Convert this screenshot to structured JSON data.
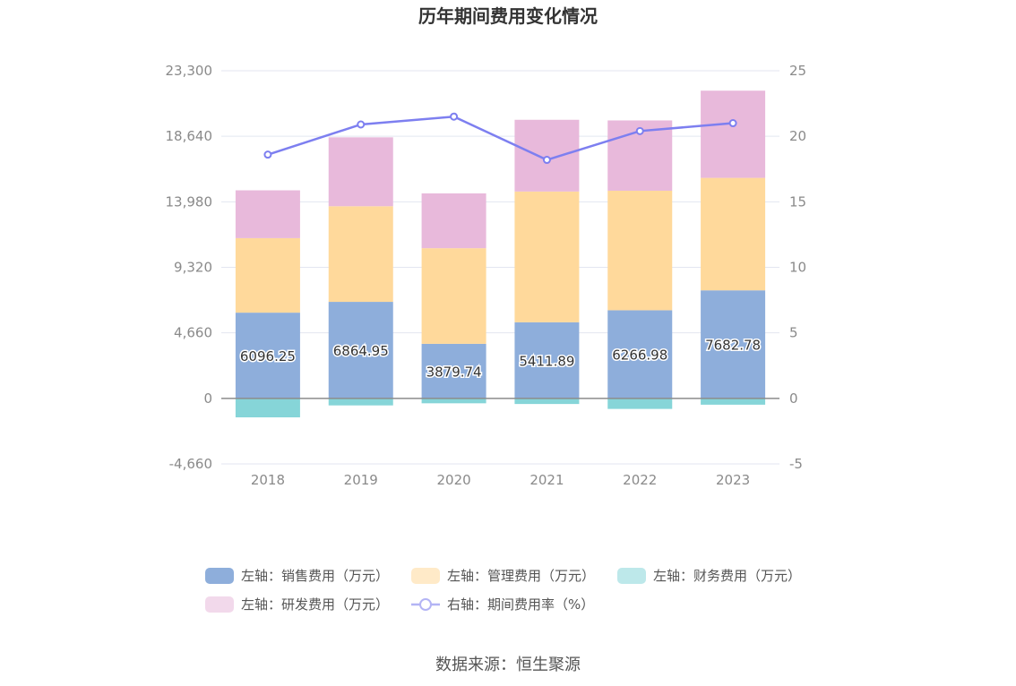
{
  "chart_data": {
    "type": "bar",
    "title": "历年期间费用变化情况",
    "categories": [
      "2018",
      "2019",
      "2020",
      "2021",
      "2022",
      "2023"
    ],
    "series": [
      {
        "name": "左轴：销售费用（万元）",
        "axis": "left",
        "stack": "cost",
        "color": "#8eaedb",
        "values": [
          6096.25,
          6864.95,
          3879.74,
          5411.89,
          6266.98,
          7682.78
        ]
      },
      {
        "name": "左轴：管理费用（万元）",
        "axis": "left",
        "stack": "cost",
        "color": "#ffd99b",
        "values": [
          5300,
          6800,
          6800,
          9300,
          8500,
          8000
        ]
      },
      {
        "name": "左轴：财务费用（万元）",
        "axis": "left",
        "stack": "cost",
        "color": "#86d5d8",
        "values": [
          -1350,
          -500,
          -350,
          -400,
          -750,
          -450
        ]
      },
      {
        "name": "左轴：研发费用（万元）",
        "axis": "left",
        "stack": "cost",
        "color": "#e8b9db",
        "values": [
          3400,
          4900,
          3900,
          5100,
          5000,
          6200
        ]
      },
      {
        "name": "右轴：期间费用率（%）",
        "axis": "right",
        "type": "line",
        "color": "#7d7ff0",
        "values": [
          18.6,
          20.9,
          21.5,
          18.2,
          20.4,
          21.0
        ]
      }
    ],
    "left_axis": {
      "ylim": [
        -4660,
        23300
      ],
      "ticks": [
        -4660,
        0,
        4660,
        9320,
        13980,
        18640,
        23300
      ],
      "tick_labels": [
        "-4,660",
        "0",
        "4,660",
        "9,320",
        "13,980",
        "18,640",
        "23,300"
      ]
    },
    "right_axis": {
      "ylim": [
        -5,
        25
      ],
      "ticks": [
        -5,
        0,
        5,
        10,
        15,
        20,
        25
      ],
      "tick_labels": [
        "-5",
        "0",
        "5",
        "10",
        "15",
        "20",
        "25"
      ]
    },
    "data_labels": [
      "6096.25",
      "6864.95",
      "3879.74",
      "5411.89",
      "6266.98",
      "7682.78"
    ],
    "grid": true,
    "legend_position": "bottom"
  },
  "source": "数据来源：恒生聚源"
}
